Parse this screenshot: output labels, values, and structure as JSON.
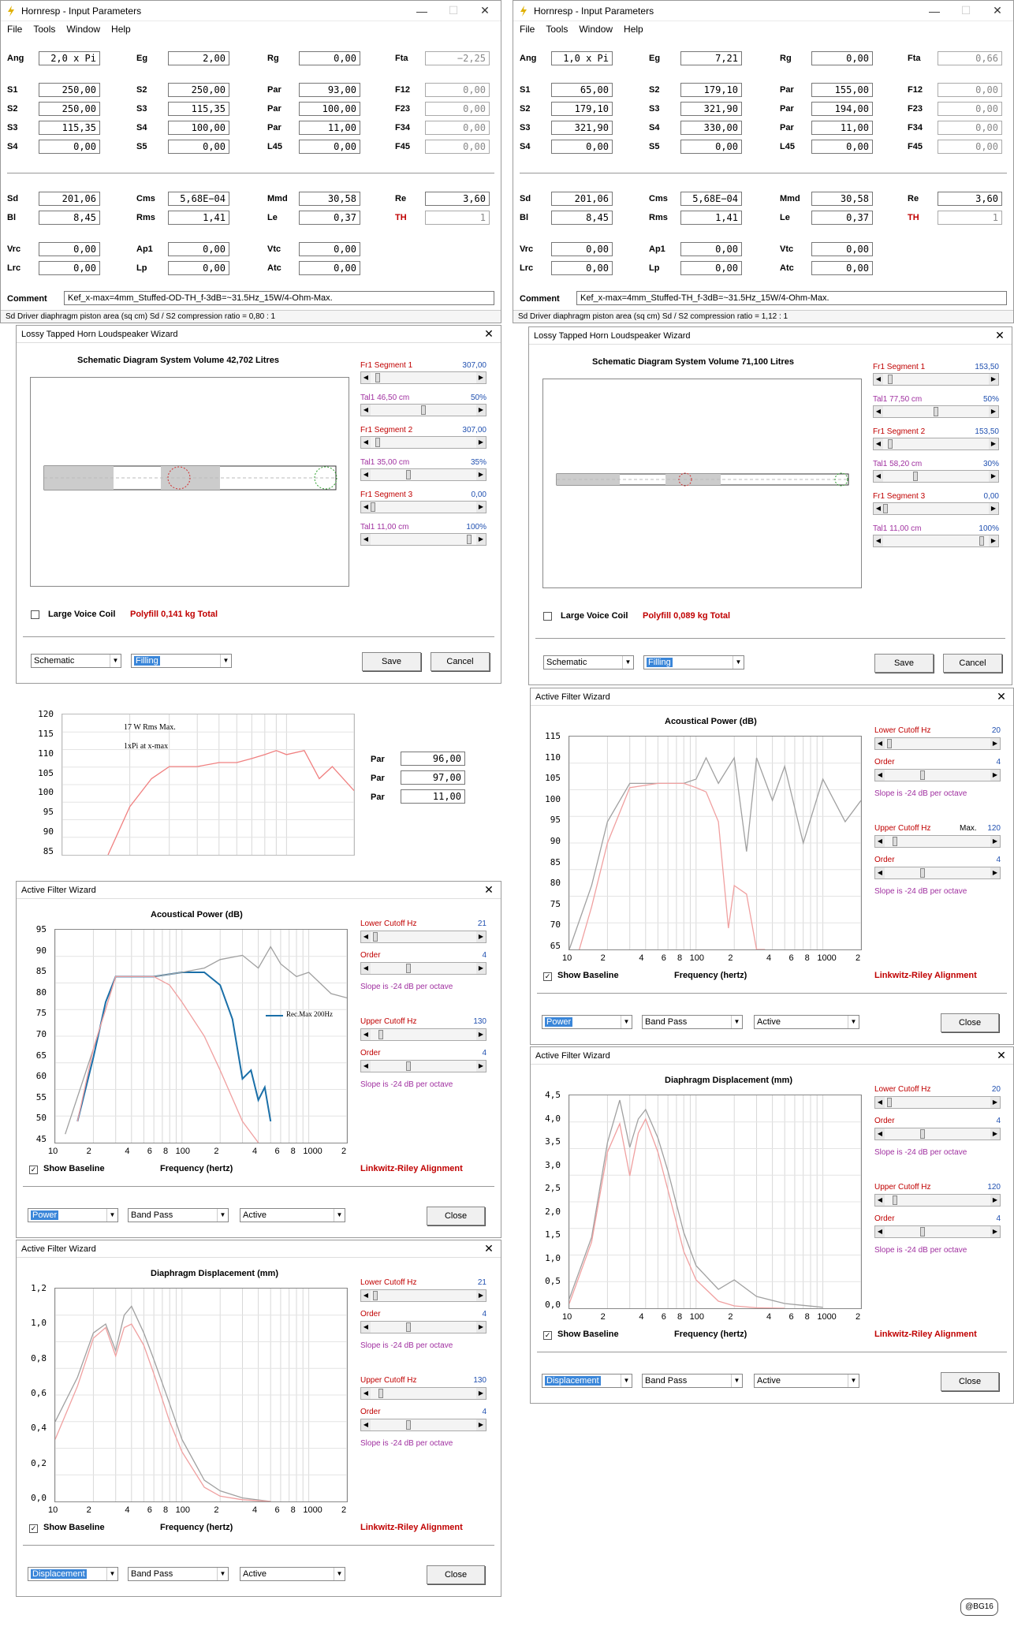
{
  "left_params": {
    "title": "Hornresp - Input Parameters",
    "menu": [
      "File",
      "Tools",
      "Window",
      "Help"
    ],
    "rows": [
      [
        [
          "Ang",
          "2,0 x Pi",
          false
        ],
        [
          "Eg",
          "2,00",
          false
        ],
        [
          "Rg",
          "0,00",
          false
        ],
        [
          "Fta",
          "−2,25",
          true
        ]
      ],
      [
        [
          "S1",
          "250,00",
          false
        ],
        [
          "S2",
          "250,00",
          false
        ],
        [
          "Par",
          "93,00",
          false
        ],
        [
          "F12",
          "0,00",
          true
        ]
      ],
      [
        [
          "S2",
          "250,00",
          false
        ],
        [
          "S3",
          "115,35",
          false
        ],
        [
          "Par",
          "100,00",
          false
        ],
        [
          "F23",
          "0,00",
          true
        ]
      ],
      [
        [
          "S3",
          "115,35",
          false
        ],
        [
          "S4",
          "100,00",
          false
        ],
        [
          "Par",
          "11,00",
          false
        ],
        [
          "F34",
          "0,00",
          true
        ]
      ],
      [
        [
          "S4",
          "0,00",
          false
        ],
        [
          "S5",
          "0,00",
          false
        ],
        [
          "L45",
          "0,00",
          false
        ],
        [
          "F45",
          "0,00",
          true
        ]
      ],
      [
        [
          "Sd",
          "201,06",
          false
        ],
        [
          "Cms",
          "5,68E−04",
          false
        ],
        [
          "Mmd",
          "30,58",
          false
        ],
        [
          "Re",
          "3,60",
          false
        ]
      ],
      [
        [
          "Bl",
          "8,45",
          false
        ],
        [
          "Rms",
          "1,41",
          false
        ],
        [
          "Le",
          "0,37",
          false
        ],
        [
          "TH",
          "1",
          true
        ]
      ],
      [
        [
          "Vrc",
          "0,00",
          false
        ],
        [
          "Ap1",
          "0,00",
          false
        ],
        [
          "Vtc",
          "0,00",
          false
        ]
      ],
      [
        [
          "Lrc",
          "0,00",
          false
        ],
        [
          "Lp",
          "0,00",
          false
        ],
        [
          "Atc",
          "0,00",
          false
        ]
      ]
    ],
    "comment_label": "Comment",
    "comment": "Kef_x-max=4mm_Stuffed-OD-TH_f-3dB=~31.5Hz_15W/4-Ohm-Max.",
    "status": "Sd   Driver diaphragm piston area  (sq cm)    Sd / S2 compression ratio = 0,80 : 1"
  },
  "right_params": {
    "title": "Hornresp - Input Parameters",
    "menu": [
      "File",
      "Tools",
      "Window",
      "Help"
    ],
    "rows": [
      [
        [
          "Ang",
          "1,0 x Pi",
          false
        ],
        [
          "Eg",
          "7,21",
          false
        ],
        [
          "Rg",
          "0,00",
          false
        ],
        [
          "Fta",
          "0,66",
          true
        ]
      ],
      [
        [
          "S1",
          "65,00",
          false
        ],
        [
          "S2",
          "179,10",
          false
        ],
        [
          "Par",
          "155,00",
          false
        ],
        [
          "F12",
          "0,00",
          true
        ]
      ],
      [
        [
          "S2",
          "179,10",
          false
        ],
        [
          "S3",
          "321,90",
          false
        ],
        [
          "Par",
          "194,00",
          false
        ],
        [
          "F23",
          "0,00",
          true
        ]
      ],
      [
        [
          "S3",
          "321,90",
          false
        ],
        [
          "S4",
          "330,00",
          false
        ],
        [
          "Par",
          "11,00",
          false
        ],
        [
          "F34",
          "0,00",
          true
        ]
      ],
      [
        [
          "S4",
          "0,00",
          false
        ],
        [
          "S5",
          "0,00",
          false
        ],
        [
          "L45",
          "0,00",
          false
        ],
        [
          "F45",
          "0,00",
          true
        ]
      ],
      [
        [
          "Sd",
          "201,06",
          false
        ],
        [
          "Cms",
          "5,68E−04",
          false
        ],
        [
          "Mmd",
          "30,58",
          false
        ],
        [
          "Re",
          "3,60",
          false
        ]
      ],
      [
        [
          "Bl",
          "8,45",
          false
        ],
        [
          "Rms",
          "1,41",
          false
        ],
        [
          "Le",
          "0,37",
          false
        ],
        [
          "TH",
          "1",
          true
        ]
      ],
      [
        [
          "Vrc",
          "0,00",
          false
        ],
        [
          "Ap1",
          "0,00",
          false
        ],
        [
          "Vtc",
          "0,00",
          false
        ]
      ],
      [
        [
          "Lrc",
          "0,00",
          false
        ],
        [
          "Lp",
          "0,00",
          false
        ],
        [
          "Atc",
          "0,00",
          false
        ]
      ]
    ],
    "comment_label": "Comment",
    "comment": "Kef_x-max=4mm_Stuffed-TH_f-3dB=~31.5Hz_15W/4-Ohm-Max.",
    "status": "Sd   Driver diaphragm piston area  (sq cm)    Sd / S2 compression ratio = 1,12 : 1"
  },
  "left_wizard": {
    "title": "Lossy Tapped Horn Loudspeaker Wizard",
    "heading": "Schematic Diagram    System Volume 42,702 Litres",
    "sliders": [
      {
        "label": "Fr1  Segment 1",
        "value": "307,00",
        "color": "red",
        "pos": 0.05
      },
      {
        "label": "Tal1  46,50 cm",
        "value": "50%",
        "color": "purple",
        "pos": 0.5
      },
      {
        "label": "Fr1  Segment 2",
        "value": "307,00",
        "color": "red",
        "pos": 0.05
      },
      {
        "label": "Tal1  35,00 cm",
        "value": "35%",
        "color": "purple",
        "pos": 0.35
      },
      {
        "label": "Fr1  Segment 3",
        "value": "0,00",
        "color": "red",
        "pos": 0.0
      },
      {
        "label": "Tal1  11,00 cm",
        "value": "100%",
        "color": "purple",
        "pos": 0.95
      }
    ],
    "large_voice_coil": "Large Voice Coil",
    "polyfill": "Polyfill   0,141 kg   Total",
    "combo1": "Schematic",
    "combo2": "Filling",
    "save": "Save",
    "cancel": "Cancel"
  },
  "right_wizard": {
    "title": "Lossy Tapped Horn Loudspeaker Wizard",
    "heading": "Schematic Diagram    System Volume 71,100 Litres",
    "sliders": [
      {
        "label": "Fr1  Segment 1",
        "value": "153,50",
        "color": "red",
        "pos": 0.05
      },
      {
        "label": "Tal1  77,50 cm",
        "value": "50%",
        "color": "purple",
        "pos": 0.5
      },
      {
        "label": "Fr1  Segment 2",
        "value": "153,50",
        "color": "red",
        "pos": 0.05
      },
      {
        "label": "Tal1  58,20 cm",
        "value": "30%",
        "color": "purple",
        "pos": 0.3
      },
      {
        "label": "Fr1  Segment 3",
        "value": "0,00",
        "color": "red",
        "pos": 0.0
      },
      {
        "label": "Tal1  11,00 cm",
        "value": "100%",
        "color": "purple",
        "pos": 0.95
      }
    ],
    "large_voice_coil": "Large Voice Coil",
    "polyfill": "Polyfill   0,089 kg   Total",
    "combo1": "Schematic",
    "combo2": "Filling",
    "save": "Save",
    "cancel": "Cancel"
  },
  "snippet": {
    "notes": [
      "17 W Rms Max.",
      "1xPi at x-max"
    ],
    "yticks": [
      "120",
      "115",
      "110",
      "105",
      "100",
      "95",
      "90",
      "85"
    ],
    "par_label": "Par",
    "pars": [
      "96,00",
      "97,00",
      "11,00"
    ]
  },
  "filter_common": {
    "lower_cutoff": "Lower Cutoff  Hz",
    "upper_cutoff": "Upper Cutoff  Hz",
    "order": "Order",
    "order_val": "4",
    "slope": "Slope is -24 dB per octave",
    "show_baseline": "Show Baseline",
    "freq_label": "Frequency (hertz)",
    "alignment": "Linkwitz-Riley Alignment",
    "band_pass": "Band Pass",
    "active": "Active",
    "close": "Close",
    "title": "Active Filter Wizard",
    "xticks": [
      "10",
      "2",
      "4",
      "6",
      "8",
      "100",
      "2",
      "4",
      "6",
      "8",
      "1000",
      "2"
    ]
  },
  "left_power": {
    "heading": "Acoustical Power (dB)",
    "lower": "21",
    "upper": "130",
    "combo": "Power",
    "legend": "Rec.Max 200Hz",
    "yticks": [
      "95",
      "90",
      "85",
      "80",
      "75",
      "70",
      "65",
      "60",
      "55",
      "50",
      "45"
    ]
  },
  "left_disp": {
    "heading": "Diaphragm Displacement (mm)",
    "lower": "21",
    "upper": "130",
    "combo": "Displacement",
    "yticks": [
      "1,2",
      "1,0",
      "0,8",
      "0,6",
      "0,4",
      "0,2",
      "0,0"
    ]
  },
  "right_power": {
    "heading": "Acoustical Power (dB)",
    "lower": "20",
    "upper": "120",
    "upper_extra": "Max.",
    "combo": "Power",
    "yticks": [
      "115",
      "110",
      "105",
      "100",
      "95",
      "90",
      "85",
      "80",
      "75",
      "70",
      "65"
    ]
  },
  "right_disp": {
    "heading": "Diaphragm Displacement (mm)",
    "lower": "20",
    "upper": "120",
    "combo": "Displacement",
    "yticks": [
      "4,5",
      "4,0",
      "3,5",
      "3,0",
      "2,5",
      "2,0",
      "1,5",
      "1,0",
      "0,5",
      "0,0"
    ]
  },
  "watermark": "@BG16",
  "chart_data": [
    {
      "type": "line",
      "title": "",
      "ylim": [
        85,
        120
      ],
      "xlim": [
        10,
        200
      ],
      "series": [
        {
          "name": "",
          "x": [
            16,
            20,
            25,
            30,
            40,
            50,
            60,
            70,
            80,
            90,
            100,
            120,
            140,
            160,
            200
          ],
          "y": [
            85,
            97,
            104,
            107,
            107,
            108,
            108,
            109,
            110,
            111,
            110,
            111,
            104,
            107,
            101
          ]
        }
      ]
    },
    {
      "type": "line",
      "title": "Acoustical Power (dB)",
      "xlabel": "Frequency (hertz)",
      "ylim": [
        45,
        95
      ],
      "xlim": [
        10,
        2000
      ],
      "series": [
        {
          "name": "Rec.Max 200Hz",
          "x": [
            15,
            20,
            25,
            30,
            40,
            60,
            100,
            150,
            200,
            250,
            300,
            350,
            400,
            450,
            500
          ],
          "y": [
            50,
            65,
            78,
            84,
            84,
            84,
            85,
            85,
            82,
            74,
            60,
            62,
            55,
            58,
            50
          ]
        },
        {
          "name": "",
          "x": [
            12,
            20,
            30,
            40,
            60,
            100,
            150,
            200,
            300,
            400,
            500,
            600,
            800,
            1000,
            1500,
            2000
          ],
          "y": [
            47,
            67,
            84,
            84,
            84,
            85,
            86,
            88,
            89,
            86,
            91,
            87,
            84,
            85,
            80,
            79
          ]
        },
        {
          "name": "",
          "x": [
            15,
            20,
            30,
            40,
            60,
            80,
            100,
            150,
            200,
            300,
            400
          ],
          "y": [
            50,
            67,
            84,
            84,
            84,
            82,
            78,
            70,
            62,
            50,
            45
          ]
        }
      ]
    },
    {
      "type": "line",
      "title": "Diaphragm Displacement (mm)",
      "xlabel": "Frequency (hertz)",
      "ylim": [
        0,
        1.2
      ],
      "xlim": [
        10,
        2000
      ],
      "series": [
        {
          "name": "",
          "x": [
            10,
            15,
            20,
            25,
            30,
            35,
            40,
            50,
            60,
            80,
            100,
            150,
            200,
            300,
            500
          ],
          "y": [
            0.45,
            0.7,
            0.95,
            1.0,
            0.85,
            1.05,
            1.1,
            0.95,
            0.8,
            0.55,
            0.35,
            0.12,
            0.06,
            0.02,
            0.0
          ]
        },
        {
          "name": "",
          "x": [
            10,
            15,
            20,
            25,
            30,
            35,
            40,
            50,
            60,
            80,
            100,
            150,
            200,
            300,
            500
          ],
          "y": [
            0.35,
            0.65,
            0.92,
            0.98,
            0.82,
            0.98,
            1.0,
            0.88,
            0.72,
            0.45,
            0.28,
            0.08,
            0.03,
            0.01,
            0.0
          ]
        }
      ]
    },
    {
      "type": "line",
      "title": "Acoustical Power (dB)",
      "xlabel": "Frequency (hertz)",
      "ylim": [
        65,
        115
      ],
      "xlim": [
        10,
        2000
      ],
      "series": [
        {
          "name": "",
          "x": [
            10,
            15,
            20,
            30,
            50,
            80,
            100,
            120,
            150,
            200,
            250,
            300,
            400,
            500,
            700,
            1000,
            1500,
            2000
          ],
          "y": [
            65,
            80,
            95,
            104,
            104,
            104,
            105,
            110,
            104,
            110,
            88,
            110,
            100,
            108,
            90,
            105,
            95,
            100
          ]
        },
        {
          "name": "",
          "x": [
            12,
            15,
            20,
            30,
            50,
            80,
            100,
            120,
            150,
            180,
            200,
            250,
            300,
            350
          ],
          "y": [
            65,
            75,
            90,
            103,
            104,
            104,
            103,
            102,
            95,
            70,
            80,
            78,
            65,
            65
          ]
        }
      ]
    },
    {
      "type": "line",
      "title": "Diaphragm Displacement (mm)",
      "xlabel": "Frequency (hertz)",
      "ylim": [
        0,
        4.5
      ],
      "xlim": [
        10,
        2000
      ],
      "series": [
        {
          "name": "",
          "x": [
            10,
            15,
            20,
            25,
            30,
            35,
            40,
            50,
            60,
            80,
            100,
            150,
            200,
            300,
            500,
            1000
          ],
          "y": [
            0.2,
            1.5,
            3.5,
            4.4,
            3.4,
            4.0,
            4.2,
            3.6,
            2.9,
            1.6,
            0.9,
            0.4,
            0.6,
            0.25,
            0.1,
            0.02
          ]
        },
        {
          "name": "",
          "x": [
            10,
            15,
            20,
            25,
            30,
            35,
            40,
            50,
            60,
            80,
            100,
            150,
            200,
            300,
            500
          ],
          "y": [
            0.1,
            1.4,
            3.3,
            3.9,
            2.8,
            3.7,
            4.0,
            3.3,
            2.5,
            1.2,
            0.6,
            0.15,
            0.05,
            0.01,
            0.0
          ]
        }
      ]
    }
  ]
}
